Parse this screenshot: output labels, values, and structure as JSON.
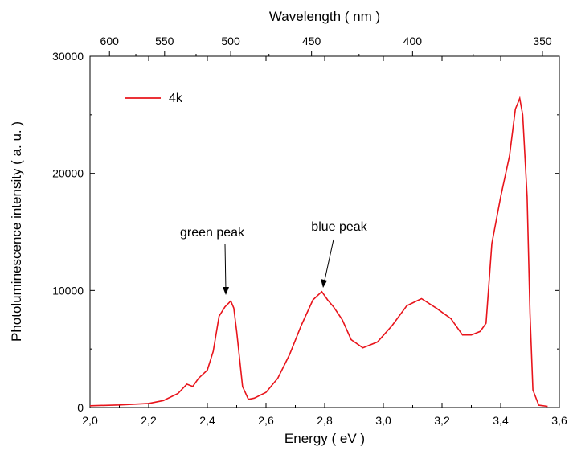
{
  "chart_data": {
    "type": "line",
    "xlabel": "Energy ( eV )",
    "ylabel": "Photoluminescence  intensity ( a. u. )",
    "top_axis_label": "Wavelength ( nm )",
    "xlim": [
      2.0,
      3.6
    ],
    "ylim": [
      0,
      30000
    ],
    "x_ticks": [
      "2,0",
      "2,2",
      "2,4",
      "2,6",
      "2,8",
      "3,0",
      "3,2",
      "3,4",
      "3,6"
    ],
    "y_ticks": [
      "0",
      "10000",
      "20000",
      "30000"
    ],
    "top_ticks": [
      "600",
      "550",
      "500",
      "450",
      "400",
      "350"
    ],
    "grid": false,
    "legend_position": "top-left",
    "series": [
      {
        "name": "4k",
        "color": "#e8141b",
        "points": [
          [
            2.0,
            150
          ],
          [
            2.1,
            220
          ],
          [
            2.2,
            350
          ],
          [
            2.25,
            600
          ],
          [
            2.3,
            1200
          ],
          [
            2.33,
            2000
          ],
          [
            2.35,
            1800
          ],
          [
            2.37,
            2500
          ],
          [
            2.4,
            3200
          ],
          [
            2.42,
            4800
          ],
          [
            2.44,
            7800
          ],
          [
            2.46,
            8600
          ],
          [
            2.48,
            9100
          ],
          [
            2.49,
            8500
          ],
          [
            2.5,
            6500
          ],
          [
            2.52,
            1800
          ],
          [
            2.54,
            700
          ],
          [
            2.56,
            800
          ],
          [
            2.6,
            1300
          ],
          [
            2.64,
            2500
          ],
          [
            2.68,
            4500
          ],
          [
            2.72,
            7000
          ],
          [
            2.76,
            9200
          ],
          [
            2.79,
            9900
          ],
          [
            2.81,
            9200
          ],
          [
            2.83,
            8600
          ],
          [
            2.86,
            7500
          ],
          [
            2.89,
            5800
          ],
          [
            2.93,
            5100
          ],
          [
            2.98,
            5600
          ],
          [
            3.03,
            7000
          ],
          [
            3.08,
            8700
          ],
          [
            3.13,
            9300
          ],
          [
            3.18,
            8500
          ],
          [
            3.23,
            7600
          ],
          [
            3.27,
            6200
          ],
          [
            3.3,
            6200
          ],
          [
            3.33,
            6500
          ],
          [
            3.35,
            7200
          ],
          [
            3.37,
            14000
          ],
          [
            3.4,
            18000
          ],
          [
            3.43,
            21500
          ],
          [
            3.45,
            25500
          ],
          [
            3.465,
            26400
          ],
          [
            3.475,
            25000
          ],
          [
            3.49,
            18000
          ],
          [
            3.5,
            8000
          ],
          [
            3.51,
            1500
          ],
          [
            3.53,
            200
          ],
          [
            3.56,
            100
          ]
        ]
      }
    ],
    "annotations": [
      {
        "text": "green peak",
        "x": 2.48,
        "y": 9100
      },
      {
        "text": "blue peak",
        "x": 2.79,
        "y": 9900
      }
    ]
  }
}
